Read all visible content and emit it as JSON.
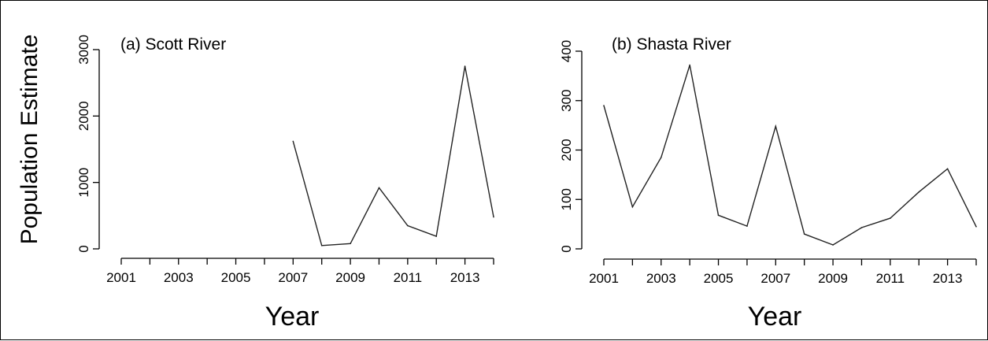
{
  "chart_data": [
    {
      "type": "line",
      "title": "(a) Scott River",
      "xlabel": "Year",
      "ylabel": "Population Estimate",
      "x_tick_labels": [
        "2001",
        "2003",
        "2005",
        "2007",
        "2009",
        "2011",
        "2013"
      ],
      "y_tick_labels": [
        "0",
        "1000",
        "2000",
        "3000"
      ],
      "xlim": [
        2001,
        2014
      ],
      "ylim": [
        0,
        3000
      ],
      "series": [
        {
          "x": [
            2007,
            2008,
            2009,
            2010,
            2011,
            2012,
            2013,
            2014
          ],
          "y": [
            1620,
            50,
            80,
            920,
            350,
            190,
            2750,
            480
          ]
        }
      ]
    },
    {
      "type": "line",
      "title": "(b) Shasta River",
      "xlabel": "Year",
      "ylabel": "",
      "x_tick_labels": [
        "2001",
        "2003",
        "2005",
        "2007",
        "2009",
        "2011",
        "2013"
      ],
      "y_tick_labels": [
        "0",
        "100",
        "200",
        "300",
        "400"
      ],
      "xlim": [
        2001,
        2014
      ],
      "ylim": [
        0,
        400
      ],
      "series": [
        {
          "x": [
            2001,
            2002,
            2003,
            2004,
            2005,
            2006,
            2007,
            2008,
            2009,
            2010,
            2011,
            2012,
            2013,
            2014
          ],
          "y": [
            290,
            85,
            185,
            372,
            68,
            46,
            248,
            30,
            8,
            43,
            62,
            115,
            162,
            45
          ]
        }
      ]
    }
  ]
}
